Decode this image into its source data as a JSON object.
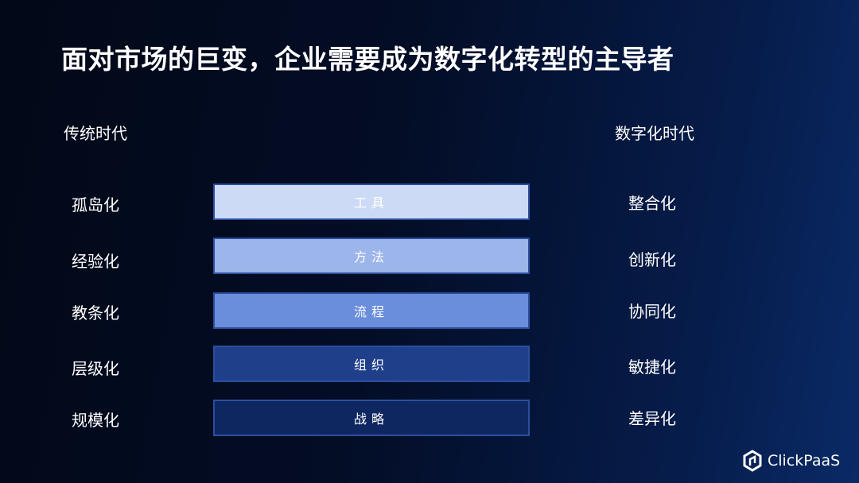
{
  "title": "面对市场的巨变，企业需要成为数字化转型的主导者",
  "left_header": "传统时代",
  "right_header": "数字化时代",
  "rows": [
    {
      "left": "孤岛化",
      "bar": "工具",
      "right": "整合化",
      "color": "#ccdaf6"
    },
    {
      "left": "经验化",
      "bar": "方法",
      "right": "创新化",
      "color": "#9cb5ea"
    },
    {
      "left": "教条化",
      "bar": "流程",
      "right": "协同化",
      "color": "#6a8edb"
    },
    {
      "left": "层级化",
      "bar": "组织",
      "right": "敏捷化",
      "color": "#1f3f8a"
    },
    {
      "left": "规模化",
      "bar": "战略",
      "right": "差异化",
      "color": "#0f2761"
    }
  ],
  "logo": {
    "text": "ClickPaaS",
    "icon": "clickpaas-hexagon-icon"
  }
}
